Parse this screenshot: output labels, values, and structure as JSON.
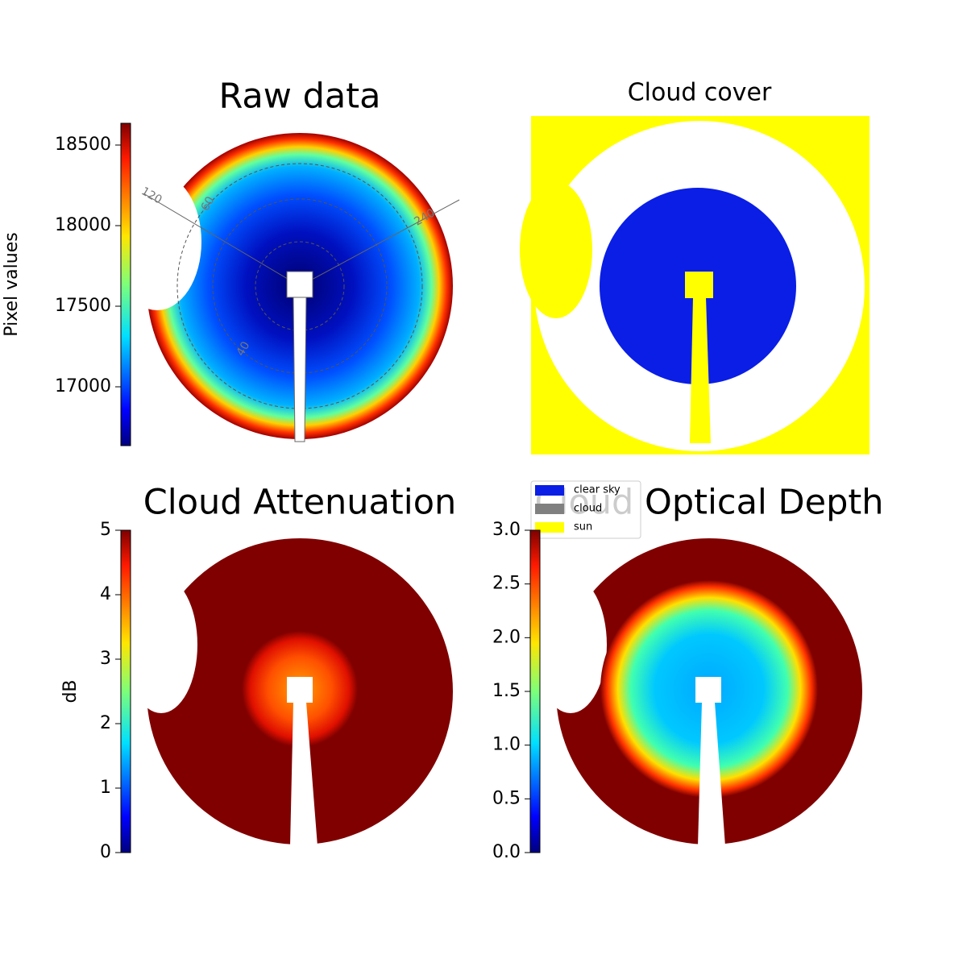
{
  "chart_data": [
    {
      "type": "image",
      "title": "Raw data",
      "polar_labels": [
        "120",
        "60",
        "240",
        "40"
      ],
      "colorbar": {
        "label": "Pixel values",
        "lim": [
          16635,
          18635
        ],
        "ticks": [
          17000,
          17500,
          18000,
          18500
        ]
      }
    },
    {
      "type": "image",
      "title": "Cloud cover",
      "legend": [
        {
          "name": "clear sky",
          "color": "#0a1ee6"
        },
        {
          "name": "cloud",
          "color": "#808080"
        },
        {
          "name": "sun",
          "color": "#ffff00"
        }
      ]
    },
    {
      "type": "image",
      "title": "Cloud Attenuation",
      "colorbar": {
        "label": "dB",
        "lim": [
          0,
          5
        ],
        "ticks": [
          0,
          1,
          2,
          3,
          4,
          5
        ]
      }
    },
    {
      "type": "image",
      "title": "Cloud Optical Depth",
      "colorbar": {
        "lim": [
          0,
          3
        ],
        "ticks": [
          {
            "value": 0,
            "label": "0.0"
          },
          {
            "value": 0.5,
            "label": "0.5"
          },
          {
            "value": 1,
            "label": "1.0"
          },
          {
            "value": 1.5,
            "label": "1.5"
          },
          {
            "value": 2,
            "label": "2.0"
          },
          {
            "value": 2.5,
            "label": "2.5"
          },
          {
            "value": 3,
            "label": "3.0"
          }
        ]
      }
    }
  ]
}
